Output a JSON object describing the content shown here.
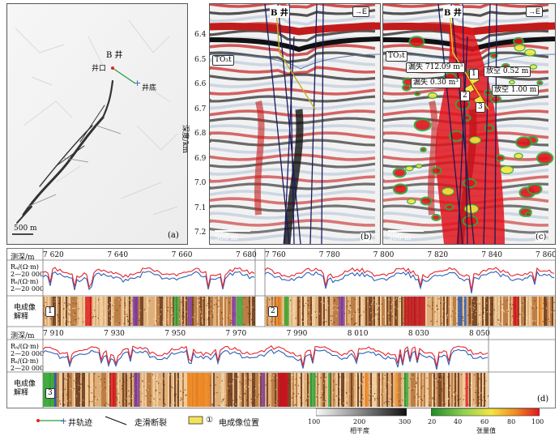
{
  "panel_a": {
    "well": "B 井",
    "wellhead": "井口",
    "wellbottom": "井底",
    "scale": "500 m",
    "label": "(a)"
  },
  "panel_b": {
    "well": "B 井",
    "direction": "E",
    "horizon": "TO₃t",
    "yaxis_title": "深度/km",
    "depth_ticks": [
      "6.4",
      "6.5",
      "6.6",
      "6.7",
      "6.8",
      "6.9",
      "7.0",
      "7.1",
      "7.2"
    ],
    "scale": "500 m",
    "label": "(b)"
  },
  "panel_c": {
    "well": "B 井",
    "direction": "E",
    "horizon": "TO₃t",
    "annotations": {
      "loss1": "漏失 712.09 m³",
      "loss2": "漏失 0.30 m³",
      "void1": "放空 0.52 m",
      "void2": "放空 1.00 m"
    },
    "markers": [
      "1",
      "2",
      "3"
    ],
    "scale": "500 m",
    "label": "(c)"
  },
  "panel_d": {
    "depth_label": "测深/m",
    "log_label_line1": "Rₐ/(Ω·m)",
    "log_label_line2": "2—20 000",
    "log_label_line3": "Rₛ/(Ω·m)",
    "log_label_line4": "2—20 000",
    "image_label_line1": "电成像",
    "image_label_line2": "解释",
    "row1a_ticks": [
      "7 620",
      "7 640",
      "7 660",
      "7 680"
    ],
    "row1b_ticks": [
      "7 760",
      "7 780",
      "7 800",
      "7 820",
      "7 840",
      "7 860"
    ],
    "row2_ticks": [
      "7 910",
      "7 930",
      "7 950",
      "7 970",
      "7 990",
      "8 010",
      "8 030",
      "8 050"
    ],
    "markers": [
      "1",
      "2",
      "3"
    ],
    "label": "(d)"
  },
  "legend": {
    "trajectory": "井轨迹",
    "fault": "走滑断裂",
    "image_pos": "电成像位置",
    "image_pos_marker": "①",
    "coherence_ticks": [
      "100",
      "200",
      "300"
    ],
    "coherence_label": "相干度",
    "tensor_ticks": [
      "20",
      "40",
      "60",
      "80",
      "100"
    ],
    "tensor_label": "张量值"
  },
  "colors": {
    "ra_curve": "#e8232a",
    "rs_curve": "#2a5fb8",
    "trajectory_red": "#e82020",
    "trajectory_blue": "#2a5fb8",
    "fault": "#1a1a5a"
  }
}
